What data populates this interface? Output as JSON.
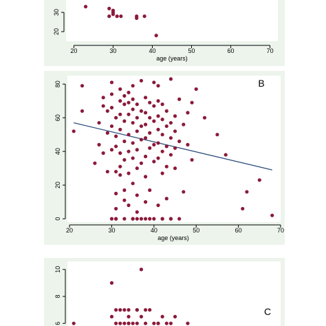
{
  "colors": {
    "panel_background": "#ecf4ec",
    "plot_background": "#ffffff",
    "marker": "#8b1a3a",
    "fit_line": "#2e4f7c",
    "axis": "#000000"
  },
  "chart_data": [
    {
      "id": "top",
      "type": "scatter",
      "panel_label": "",
      "xlabel": "age (years)",
      "ylabel": "",
      "xlim": [
        18,
        72
      ],
      "ylim": [
        15,
        40
      ],
      "x_ticks": [
        20,
        30,
        40,
        50,
        60,
        70
      ],
      "y_ticks": [
        20,
        30
      ],
      "grid": false,
      "series": [
        {
          "x": [
            23,
            29,
            30,
            30,
            31,
            29,
            30,
            36,
            36,
            38,
            41,
            32
          ],
          "y": [
            33,
            32,
            31,
            30,
            28,
            28,
            29,
            28,
            27,
            28,
            18,
            28
          ]
        }
      ]
    },
    {
      "id": "B",
      "type": "scatter",
      "panel_label": "B",
      "xlabel": "age (years)",
      "ylabel": "",
      "xlim": [
        19.5,
        70
      ],
      "ylim": [
        -2,
        85
      ],
      "x_ticks": [
        20,
        30,
        40,
        50,
        60,
        70
      ],
      "y_ticks": [
        0,
        20,
        40,
        60,
        80
      ],
      "grid": false,
      "fit_line": {
        "x": [
          21,
          68
        ],
        "y": [
          57,
          29
        ]
      },
      "series": [
        {
          "x": [
            21,
            23,
            23,
            26,
            27,
            27,
            28,
            28,
            28,
            29,
            29,
            29,
            30,
            30,
            30,
            30,
            30,
            31,
            31,
            31,
            31,
            31,
            31,
            31,
            32,
            32,
            32,
            32,
            32,
            32,
            33,
            33,
            33,
            33,
            33,
            33,
            33,
            34,
            34,
            34,
            34,
            34,
            34,
            34,
            35,
            35,
            35,
            35,
            35,
            35,
            35,
            35,
            36,
            36,
            36,
            36,
            36,
            36,
            36,
            37,
            37,
            37,
            37,
            37,
            37,
            38,
            38,
            38,
            38,
            38,
            38,
            38,
            39,
            39,
            39,
            39,
            39,
            40,
            40,
            40,
            40,
            40,
            40,
            41,
            41,
            41,
            41,
            41,
            41,
            41,
            42,
            42,
            42,
            42,
            42,
            42,
            43,
            43,
            43,
            43,
            43,
            44,
            44,
            44,
            44,
            45,
            45,
            45,
            45,
            46,
            46,
            47,
            47,
            48,
            48,
            49,
            49,
            50,
            52,
            55,
            57,
            61,
            62,
            65,
            68,
            36,
            39,
            44,
            33,
            30,
            31,
            35,
            38,
            42,
            44,
            46,
            32
          ],
          "y": [
            52,
            79,
            64,
            33,
            57,
            44,
            39,
            72,
            67,
            64,
            51,
            28,
            81,
            74,
            66,
            55,
            41,
            60,
            49,
            43,
            28,
            15,
            6,
            0,
            77,
            70,
            62,
            53,
            39,
            31,
            73,
            68,
            58,
            46,
            35,
            17,
            11,
            75,
            69,
            62,
            50,
            40,
            27,
            8,
            79,
            71,
            65,
            57,
            45,
            36,
            21,
            0,
            68,
            60,
            52,
            41,
            30,
            14,
            4,
            82,
            64,
            55,
            47,
            33,
            0,
            72,
            63,
            56,
            48,
            37,
            25,
            10,
            69,
            60,
            51,
            42,
            17,
            81,
            67,
            58,
            44,
            34,
            0,
            79,
            70,
            61,
            53,
            45,
            36,
            8,
            68,
            59,
            50,
            40,
            27,
            0,
            64,
            55,
            43,
            31,
            12,
            83,
            57,
            48,
            38,
            61,
            52,
            42,
            30,
            71,
            46,
            56,
            16,
            63,
            44,
            69,
            35,
            77,
            60,
            50,
            38,
            6,
            16,
            23,
            2,
            0,
            0,
            0,
            0,
            0,
            0,
            0,
            0,
            0,
            0,
            0,
            26
          ]
        }
      ]
    },
    {
      "id": "C",
      "type": "scatter",
      "panel_label": "C",
      "xlabel": "",
      "ylabel": "",
      "xlim": [
        19.5,
        70
      ],
      "ylim": [
        5.5,
        10.6
      ],
      "x_ticks": [],
      "y_ticks": [
        6,
        8,
        10
      ],
      "grid": false,
      "series": [
        {
          "x": [
            21,
            30,
            31,
            32,
            33,
            34,
            31,
            32,
            33,
            34,
            35,
            36,
            37,
            38,
            39,
            40,
            41,
            42,
            43,
            44,
            45,
            48,
            37,
            34,
            36,
            38,
            41,
            36,
            30,
            34
          ],
          "y": [
            6,
            9,
            7,
            7,
            7,
            6.5,
            6,
            6,
            6,
            6,
            6,
            7,
            6.5,
            6,
            7,
            6,
            6,
            6.5,
            6,
            6,
            6.5,
            6,
            10,
            6,
            6,
            7,
            6,
            7,
            6.5,
            7
          ]
        }
      ]
    }
  ]
}
